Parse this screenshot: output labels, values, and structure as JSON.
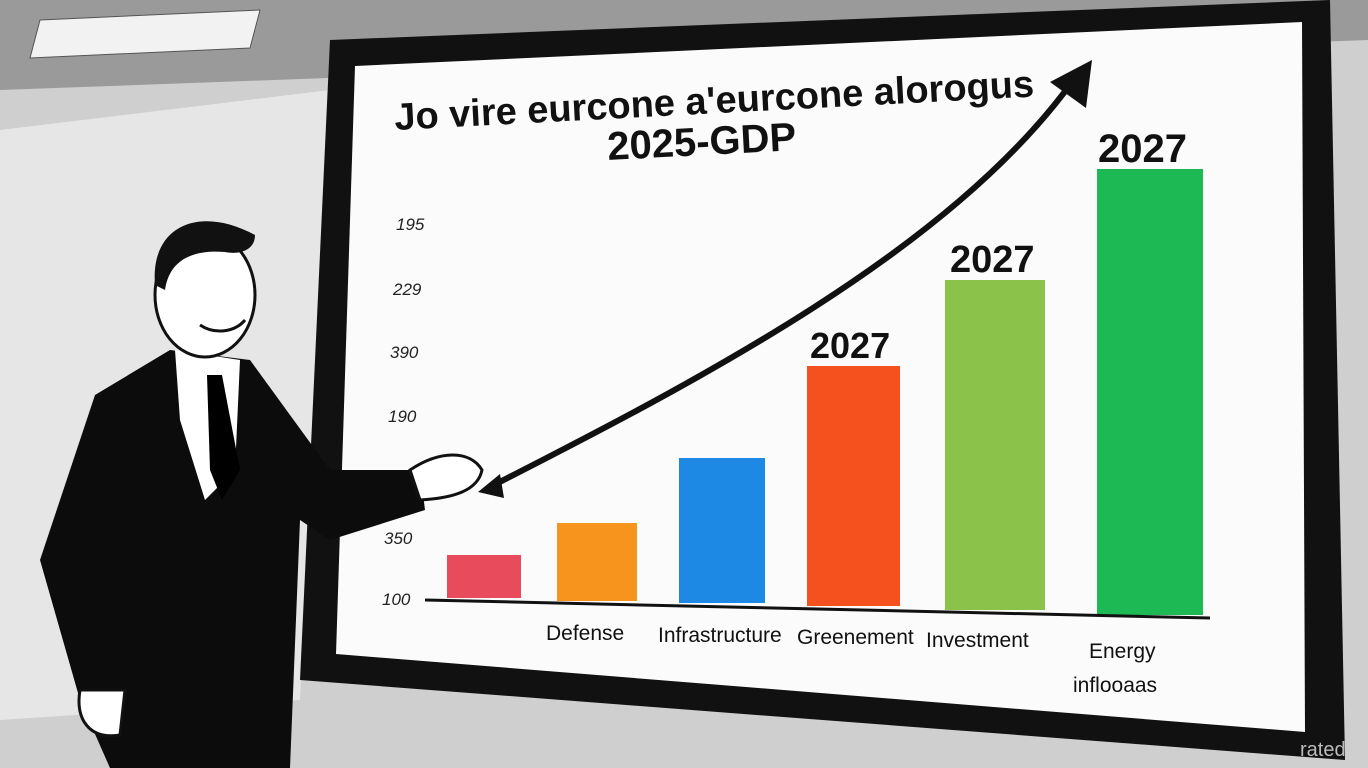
{
  "screen": {
    "title_lines": [
      "Jo vire eurcone a'eurcone alorogus",
      "2025-GDP"
    ],
    "y_axis_labels": [
      "195",
      "229",
      "390",
      "190",
      "350",
      "100"
    ],
    "bar_labels": [
      "2027",
      "2027",
      "2027"
    ],
    "categories": [
      "Defense",
      "Infrastructure",
      "Greenement",
      "Investment",
      [
        "Energy",
        "inflooaas"
      ]
    ]
  },
  "watermark": "rated"
}
